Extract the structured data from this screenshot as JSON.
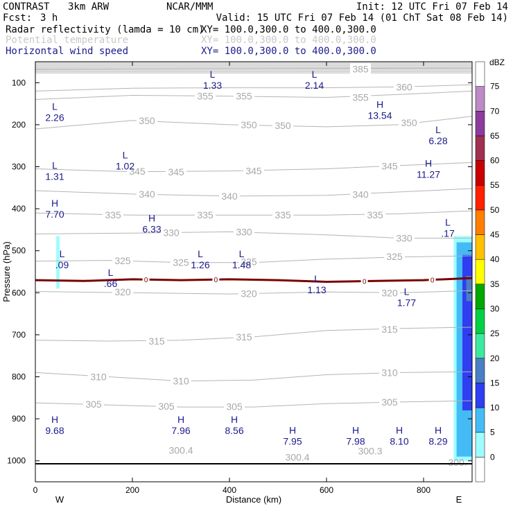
{
  "header": {
    "product": "CONTRAST",
    "model": "3km ARW",
    "center": "NCAR/MMM",
    "init": "Init: 12 UTC Fri 07 Feb 14",
    "fcst_label": "Fcst:",
    "fcst_value": "3 h",
    "valid": "Valid: 15 UTC Fri 07 Feb 14 (01 ChT Sat 08 Feb 14)",
    "fields": [
      {
        "name": "Radar reflectivity (lamda = 10 cm)",
        "xy": "XY= 100.0,300.0 to 400.0,300.0",
        "color": "#000000"
      },
      {
        "name": "Potential temperature",
        "xy": "XY= 100.0,300.0 to 400.0,300.0",
        "color": "#c8c8c8"
      },
      {
        "name": "Horizontal wind speed",
        "xy": "XY= 100.0,300.0 to 400.0,300.0",
        "color": "#1a1a8c"
      }
    ]
  },
  "chart_data": {
    "type": "cross-section",
    "xlabel": "Distance (km)",
    "ylabel": "Pressure (hPa)",
    "xlim": [
      0,
      900
    ],
    "ylim": [
      1050,
      50
    ],
    "x_ticks": [
      0,
      200,
      400,
      600,
      800
    ],
    "y_ticks": [
      100,
      200,
      300,
      400,
      500,
      600,
      700,
      800,
      900,
      1000
    ],
    "end_labels": {
      "left": "W",
      "right": "E"
    },
    "colorbar": {
      "unit": "dBZ",
      "levels": [
        0,
        5,
        10,
        15,
        20,
        25,
        30,
        35,
        40,
        45,
        50,
        55,
        60,
        65,
        70,
        75
      ],
      "colors": [
        "#ffffff",
        "#9ffcff",
        "#44bbf5",
        "#2f3ef0",
        "#4a7fc4",
        "#3fe8a0",
        "#00d045",
        "#00a800",
        "#ffff00",
        "#ffc000",
        "#ff7f00",
        "#ff2000",
        "#c80000",
        "#a03050",
        "#8c3c9c",
        "#bc8ac4",
        "#ffffff"
      ]
    },
    "theta_contours": [
      {
        "value": 305,
        "pts": [
          [
            0,
            862
          ],
          [
            150,
            867
          ],
          [
            300,
            872
          ],
          [
            450,
            872
          ],
          [
            600,
            864
          ],
          [
            750,
            860
          ],
          [
            900,
            857
          ]
        ],
        "labels": [
          [
            120,
            865
          ],
          [
            270,
            870
          ],
          [
            410,
            871
          ],
          [
            730,
            860
          ]
        ]
      },
      {
        "value": 310,
        "pts": [
          [
            0,
            790
          ],
          [
            150,
            800
          ],
          [
            300,
            810
          ],
          [
            450,
            808
          ],
          [
            600,
            795
          ],
          [
            750,
            790
          ],
          [
            900,
            788
          ]
        ],
        "labels": [
          [
            130,
            800
          ],
          [
            300,
            810
          ],
          [
            730,
            790
          ]
        ]
      },
      {
        "value": 315,
        "pts": [
          [
            0,
            713
          ],
          [
            150,
            715
          ],
          [
            300,
            713
          ],
          [
            450,
            705
          ],
          [
            600,
            690
          ],
          [
            750,
            685
          ],
          [
            900,
            682
          ]
        ],
        "labels": [
          [
            250,
            715
          ],
          [
            430,
            705
          ],
          [
            730,
            687
          ]
        ]
      },
      {
        "value": 320,
        "pts": [
          [
            0,
            597
          ],
          [
            200,
            600
          ],
          [
            400,
            603
          ],
          [
            600,
            598
          ],
          [
            750,
            600
          ],
          [
            900,
            595
          ]
        ],
        "labels": [
          [
            180,
            598
          ],
          [
            440,
            602
          ],
          [
            730,
            600
          ]
        ]
      },
      {
        "value": 325,
        "pts": [
          [
            0,
            525
          ],
          [
            150,
            523
          ],
          [
            300,
            528
          ],
          [
            450,
            528
          ],
          [
            600,
            520
          ],
          [
            750,
            515
          ],
          [
            900,
            512
          ]
        ],
        "labels": [
          [
            180,
            524
          ],
          [
            300,
            528
          ],
          [
            440,
            526
          ],
          [
            740,
            514
          ]
        ]
      },
      {
        "value": 330,
        "pts": [
          [
            0,
            460
          ],
          [
            200,
            458
          ],
          [
            400,
            455
          ],
          [
            600,
            462
          ],
          [
            750,
            470
          ],
          [
            900,
            470
          ]
        ],
        "labels": [
          [
            280,
            457
          ],
          [
            430,
            455
          ],
          [
            760,
            470
          ]
        ]
      },
      {
        "value": 335,
        "pts": [
          [
            0,
            410
          ],
          [
            200,
            415
          ],
          [
            400,
            415
          ],
          [
            600,
            415
          ],
          [
            750,
            412
          ],
          [
            900,
            405
          ]
        ],
        "labels": [
          [
            160,
            415
          ],
          [
            350,
            415
          ],
          [
            510,
            415
          ],
          [
            700,
            415
          ]
        ]
      },
      {
        "value": 340,
        "pts": [
          [
            0,
            357
          ],
          [
            200,
            365
          ],
          [
            400,
            370
          ],
          [
            600,
            368
          ],
          [
            750,
            360
          ],
          [
            900,
            352
          ]
        ],
        "labels": [
          [
            230,
            365
          ],
          [
            400,
            370
          ],
          [
            670,
            366
          ]
        ]
      },
      {
        "value": 345,
        "pts": [
          [
            0,
            305
          ],
          [
            200,
            312
          ],
          [
            400,
            310
          ],
          [
            600,
            305
          ],
          [
            750,
            297
          ],
          [
            900,
            290
          ]
        ],
        "labels": [
          [
            210,
            311
          ],
          [
            290,
            312
          ],
          [
            450,
            310
          ],
          [
            730,
            298
          ]
        ]
      },
      {
        "value": 350,
        "pts": [
          [
            0,
            210
          ],
          [
            200,
            190
          ],
          [
            400,
            200
          ],
          [
            600,
            205
          ],
          [
            750,
            200
          ],
          [
            900,
            180
          ]
        ],
        "labels": [
          [
            230,
            190
          ],
          [
            440,
            200
          ],
          [
            510,
            202
          ],
          [
            770,
            195
          ]
        ]
      },
      {
        "value": 355,
        "pts": [
          [
            0,
            140
          ],
          [
            200,
            130
          ],
          [
            400,
            132
          ],
          [
            600,
            135
          ],
          [
            750,
            128
          ],
          [
            900,
            120
          ]
        ],
        "labels": [
          [
            350,
            132
          ],
          [
            430,
            132
          ],
          [
            670,
            135
          ]
        ]
      },
      {
        "value": 360,
        "pts": [
          [
            0,
            120
          ],
          [
            200,
            113
          ],
          [
            400,
            112
          ],
          [
            600,
            112
          ],
          [
            750,
            110
          ],
          [
            900,
            105
          ]
        ],
        "labels": [
          [
            760,
            110
          ]
        ]
      },
      {
        "value": 385,
        "pts": [
          [
            0,
            68
          ],
          [
            300,
            67
          ],
          [
            600,
            66
          ],
          [
            900,
            65
          ]
        ],
        "labels": [
          [
            670,
            67
          ]
        ]
      }
    ],
    "theta_surface_labels": [
      {
        "text": "300.4",
        "x": 300,
        "p": 983
      },
      {
        "text": "300.4",
        "x": 540,
        "p": 1000
      },
      {
        "text": "300.3",
        "x": 690,
        "p": 985
      },
      {
        "text": "300.",
        "x": 870,
        "p": 1012
      }
    ],
    "wind_extrema": [
      {
        "type": "H",
        "value": "9.68",
        "x": 40,
        "p": 910
      },
      {
        "type": "H",
        "value": "7.96",
        "x": 300,
        "p": 910
      },
      {
        "type": "H",
        "value": "8.56",
        "x": 410,
        "p": 910
      },
      {
        "type": "H",
        "value": "7.95",
        "x": 530,
        "p": 935
      },
      {
        "type": "H",
        "value": "7.98",
        "x": 660,
        "p": 935
      },
      {
        "type": "H",
        "value": "8.10",
        "x": 750,
        "p": 935
      },
      {
        "type": "H",
        "value": "8.29",
        "x": 830,
        "p": 935
      },
      {
        "type": "L",
        "value": ".09",
        "x": 55,
        "p": 515
      },
      {
        "type": "L",
        "value": ".66",
        "x": 155,
        "p": 560
      },
      {
        "type": "L",
        "value": "1.26",
        "x": 340,
        "p": 515
      },
      {
        "type": "L",
        "value": "1.48",
        "x": 425,
        "p": 515
      },
      {
        "type": "L",
        "value": "1.13",
        "x": 580,
        "p": 575
      },
      {
        "type": "L",
        "value": "1.77",
        "x": 765,
        "p": 605
      },
      {
        "type": "L",
        "value": ".17",
        "x": 850,
        "p": 440
      },
      {
        "type": "H",
        "value": "7.70",
        "x": 40,
        "p": 395
      },
      {
        "type": "H",
        "value": "6.33",
        "x": 240,
        "p": 430
      },
      {
        "type": "L",
        "value": "1.31",
        "x": 40,
        "p": 305
      },
      {
        "type": "L",
        "value": "1.02",
        "x": 185,
        "p": 280
      },
      {
        "type": "H",
        "value": "11.27",
        "x": 810,
        "p": 300
      },
      {
        "type": "L",
        "value": "6.28",
        "x": 830,
        "p": 220
      },
      {
        "type": "L",
        "value": "2.26",
        "x": 40,
        "p": 165
      },
      {
        "type": "H",
        "value": "13.54",
        "x": 710,
        "p": 160
      },
      {
        "type": "L",
        "value": "1.33",
        "x": 365,
        "p": 88
      },
      {
        "type": "L",
        "value": "2.14",
        "x": 575,
        "p": 88
      }
    ],
    "zero_line": {
      "value": "0",
      "pts": [
        [
          0,
          570
        ],
        [
          100,
          572
        ],
        [
          200,
          568
        ],
        [
          300,
          570
        ],
        [
          400,
          568
        ],
        [
          500,
          570
        ],
        [
          600,
          574
        ],
        [
          700,
          572
        ],
        [
          800,
          570
        ],
        [
          900,
          565
        ]
      ],
      "labels": [
        228,
        372,
        678,
        818
      ]
    },
    "reflectivity": [
      {
        "x0": 43,
        "x1": 50,
        "p0": 465,
        "p1": 590,
        "color": "#9ffcff"
      },
      {
        "x0": 862,
        "x1": 900,
        "p0": 465,
        "p1": 1000,
        "color": "#9ffcff"
      },
      {
        "x0": 868,
        "x1": 900,
        "p0": 480,
        "p1": 990,
        "color": "#44bbf5"
      },
      {
        "x0": 880,
        "x1": 900,
        "p0": 510,
        "p1": 880,
        "color": "#2f3ef0"
      },
      {
        "x0": 888,
        "x1": 900,
        "p0": 560,
        "p1": 620,
        "color": "#4a7fc4"
      }
    ]
  }
}
